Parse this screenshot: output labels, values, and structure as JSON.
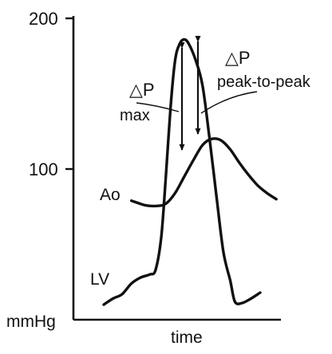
{
  "chart_data": {
    "type": "line",
    "xlabel": "time",
    "ylabel": "mmHg",
    "ylim": [
      0,
      200
    ],
    "y_ticks": [
      {
        "value": 200,
        "label": "200"
      },
      {
        "value": 100,
        "label": "100"
      }
    ],
    "grid": false,
    "series": [
      {
        "name": "Ao",
        "points": [
          [
            0.12,
            79
          ],
          [
            0.18,
            76
          ],
          [
            0.23,
            75.5
          ],
          [
            0.27,
            77
          ],
          [
            0.31,
            84
          ],
          [
            0.35,
            95
          ],
          [
            0.39,
            106
          ],
          [
            0.43,
            116
          ],
          [
            0.47,
            120
          ],
          [
            0.51,
            119
          ],
          [
            0.55,
            113
          ],
          [
            0.59,
            104
          ],
          [
            0.63,
            96
          ],
          [
            0.67,
            89
          ],
          [
            0.71,
            84
          ],
          [
            0.75,
            80
          ]
        ]
      },
      {
        "name": "LV",
        "points": [
          [
            0.0,
            10
          ],
          [
            0.04,
            14
          ],
          [
            0.08,
            17
          ],
          [
            0.12,
            24
          ],
          [
            0.16,
            28
          ],
          [
            0.2,
            30
          ],
          [
            0.225,
            33
          ],
          [
            0.25,
            55
          ],
          [
            0.27,
            95
          ],
          [
            0.29,
            140
          ],
          [
            0.31,
            172
          ],
          [
            0.33,
            183
          ],
          [
            0.35,
            186
          ],
          [
            0.37,
            183
          ],
          [
            0.4,
            172
          ],
          [
            0.43,
            155
          ],
          [
            0.46,
            120
          ],
          [
            0.49,
            82
          ],
          [
            0.52,
            45
          ],
          [
            0.55,
            26
          ],
          [
            0.57,
            12
          ],
          [
            0.6,
            11
          ],
          [
            0.64,
            14
          ],
          [
            0.68,
            18
          ]
        ]
      }
    ],
    "annotations": [
      {
        "id": "dp_max",
        "lines": [
          "△P",
          "max"
        ]
      },
      {
        "id": "dp_peak",
        "lines": [
          "△P",
          "peak-to-peak"
        ]
      }
    ]
  }
}
